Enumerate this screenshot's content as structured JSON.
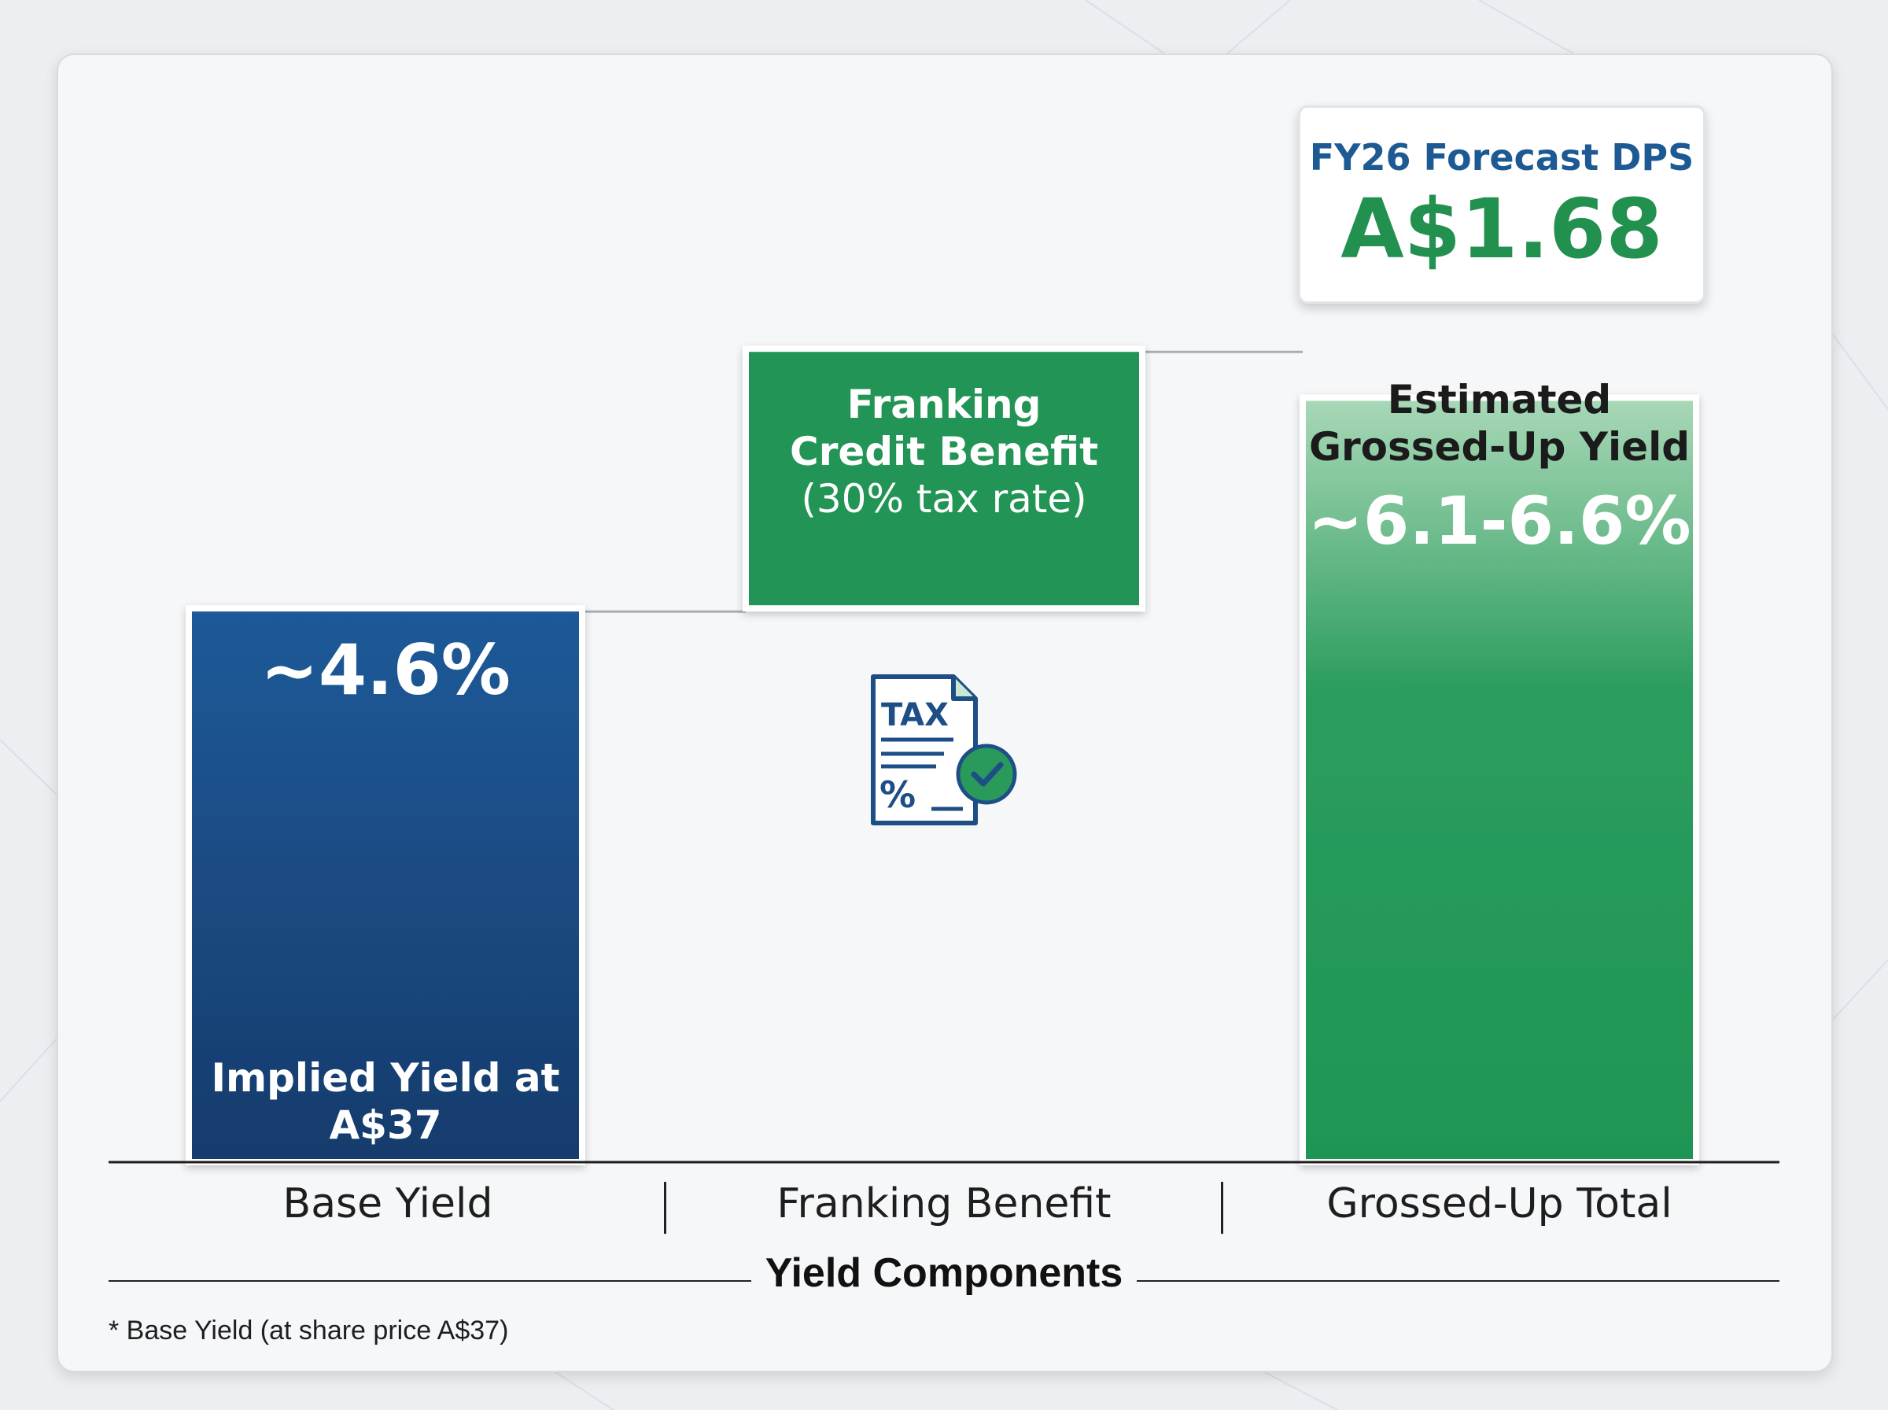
{
  "chart_data": {
    "type": "bar",
    "categories": [
      "Base Yield",
      "Franking Benefit",
      "Grossed-Up Total"
    ],
    "series": [
      {
        "values": [
          4.6,
          1.5,
          6.35
        ]
      }
    ],
    "value_labels": [
      "~4.6%",
      "",
      "~6.1-6.6%"
    ],
    "bar_labels": [
      "Implied Yield at A$37",
      "Franking Credit Benefit (30% tax rate)",
      "Estimated Grossed-Up Yield"
    ],
    "xlabel": "Yield Components",
    "colors": [
      "#1a4f8a",
      "#209457",
      "#209457"
    ]
  },
  "bars": {
    "base": {
      "value": "~4.6%",
      "label_line1": "Implied Yield at",
      "label_line2": "A$37"
    },
    "franking": {
      "line1": "Franking",
      "line2": "Credit Benefit",
      "line3": "(30% tax rate)"
    },
    "total": {
      "line1": "Estimated",
      "line2": "Grossed-Up Yield",
      "value": "~6.1-6.6%"
    }
  },
  "dps_box": {
    "title": "FY26 Forecast DPS",
    "value": "A$1.68"
  },
  "icon": {
    "name": "tax-document-check-icon",
    "text": "TAX",
    "symbol": "%"
  },
  "footnote": "* Base Yield (at share price A$37)",
  "colors": {
    "blue": "#1a4f8a",
    "green": "#209457",
    "dps_title": "#1d5a94"
  }
}
